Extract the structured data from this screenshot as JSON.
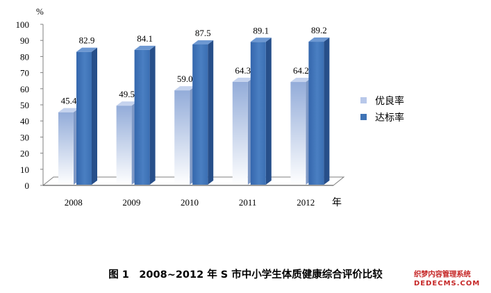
{
  "chart_data": {
    "type": "bar",
    "categories": [
      "2008",
      "2009",
      "2010",
      "2011",
      "2012"
    ],
    "series": [
      {
        "name": "优良率",
        "values": [
          45.4,
          49.5,
          59.0,
          64.3,
          64.2
        ],
        "color": "#b8c8ea"
      },
      {
        "name": "达标率",
        "values": [
          82.9,
          84.1,
          87.5,
          89.1,
          89.2
        ],
        "color": "#3f73b6"
      }
    ],
    "data_labels": [
      [
        "45.4",
        "49.5",
        "59.0",
        "64.3",
        "64.2"
      ],
      [
        "82.9",
        "84.1",
        "87.5",
        "89.1",
        "89.2"
      ]
    ],
    "ylim": [
      0,
      100
    ],
    "yticks": [
      0,
      10,
      20,
      30,
      40,
      50,
      60,
      70,
      80,
      90,
      100
    ],
    "ylabel": "%",
    "xlabel": "年",
    "legend_position": "right",
    "style": "3d-clustered-column",
    "grid": false
  },
  "caption": "图 1　2008~2012 年 S 市中小学生体质健康综合评价比较",
  "caption_mark": "↵",
  "watermark": {
    "line1": "织梦内容管理系统",
    "line2": "DEDECMS.COM"
  }
}
